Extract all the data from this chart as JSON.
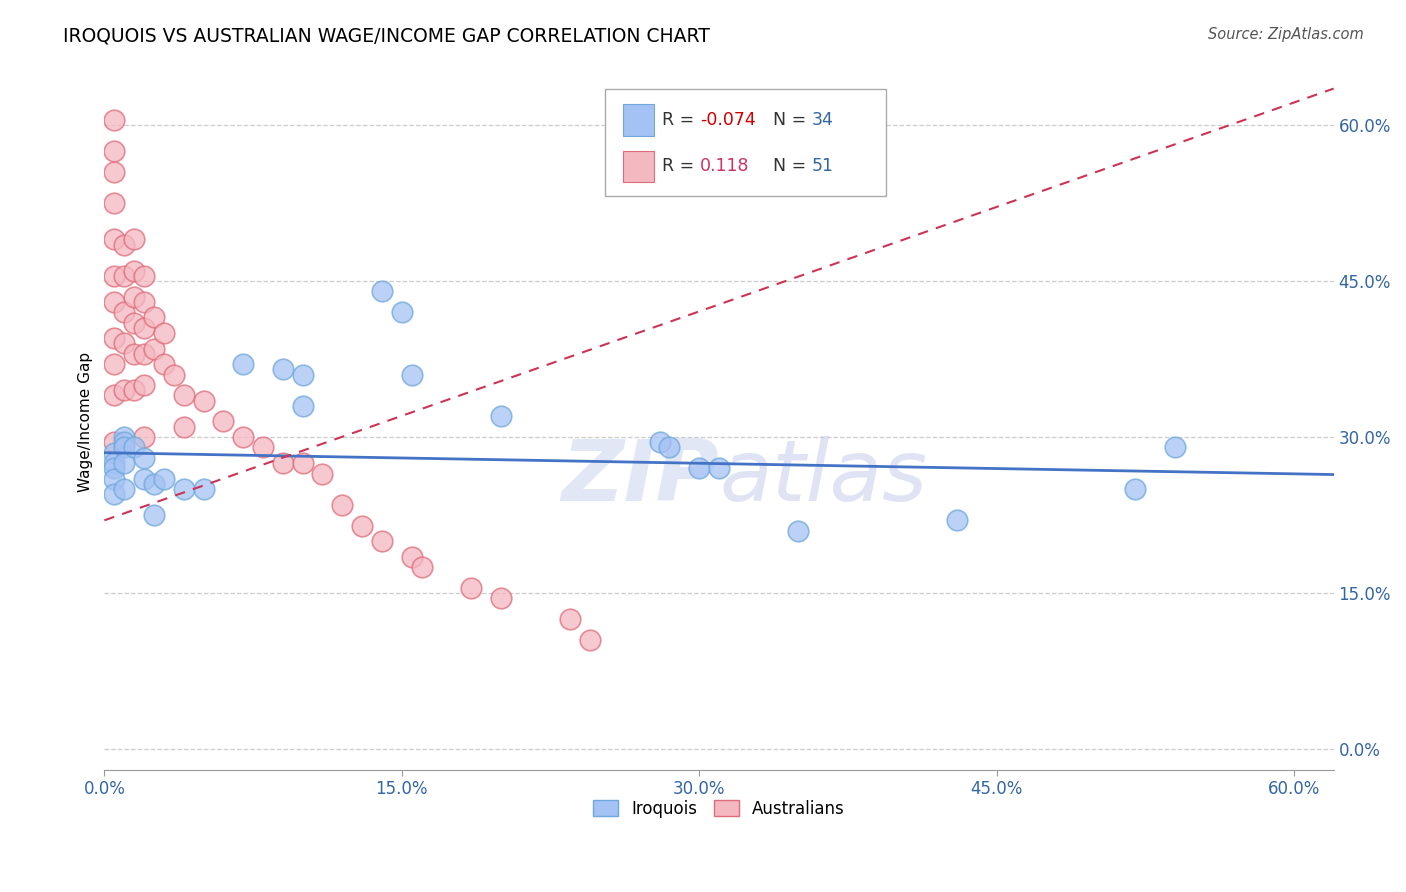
{
  "title": "IROQUOIS VS AUSTRALIAN WAGE/INCOME GAP CORRELATION CHART",
  "source": "Source: ZipAtlas.com",
  "ylabel": "Wage/Income Gap",
  "xlim": [
    0.0,
    0.62
  ],
  "ylim": [
    -0.02,
    0.65
  ],
  "x_ticks": [
    0.0,
    0.15,
    0.3,
    0.45,
    0.6
  ],
  "x_tick_labels": [
    "0.0%",
    "15.0%",
    "30.0%",
    "45.0%",
    "60.0%"
  ],
  "y_ticks": [
    0.0,
    0.15,
    0.3,
    0.45,
    0.6
  ],
  "y_tick_labels": [
    "0.0%",
    "15.0%",
    "30.0%",
    "45.0%",
    "60.0%"
  ],
  "legend_iroquois_R": "-0.074",
  "legend_iroquois_N": "34",
  "legend_australians_R": "0.118",
  "legend_australians_N": "51",
  "iroquois_color": "#a4c2f4",
  "australians_color": "#f4b8c1",
  "iroquois_edge_color": "#6fa8dc",
  "australians_edge_color": "#e06c7a",
  "iroquois_line_color": "#4472c4",
  "australians_line_color": "#cc3355",
  "R_neg_color": "#cc0000",
  "R_pos_color": "#cc3366",
  "N_color": "#3465a4",
  "iroquois_x": [
    0.005,
    0.005,
    0.005,
    0.005,
    0.005,
    0.01,
    0.01,
    0.01,
    0.01,
    0.01,
    0.015,
    0.02,
    0.02,
    0.025,
    0.025,
    0.03,
    0.04,
    0.05,
    0.07,
    0.09,
    0.1,
    0.1,
    0.14,
    0.15,
    0.155,
    0.2,
    0.28,
    0.285,
    0.3,
    0.31,
    0.35,
    0.43,
    0.52,
    0.54
  ],
  "iroquois_y": [
    0.285,
    0.275,
    0.27,
    0.26,
    0.245,
    0.3,
    0.295,
    0.29,
    0.275,
    0.25,
    0.29,
    0.28,
    0.26,
    0.255,
    0.225,
    0.26,
    0.25,
    0.25,
    0.37,
    0.365,
    0.36,
    0.33,
    0.44,
    0.42,
    0.36,
    0.32,
    0.295,
    0.29,
    0.27,
    0.27,
    0.21,
    0.22,
    0.25,
    0.29
  ],
  "australians_x": [
    0.005,
    0.005,
    0.005,
    0.005,
    0.005,
    0.005,
    0.005,
    0.005,
    0.005,
    0.005,
    0.005,
    0.01,
    0.01,
    0.01,
    0.01,
    0.01,
    0.015,
    0.015,
    0.015,
    0.015,
    0.015,
    0.015,
    0.02,
    0.02,
    0.02,
    0.02,
    0.02,
    0.02,
    0.025,
    0.025,
    0.03,
    0.03,
    0.035,
    0.04,
    0.04,
    0.05,
    0.06,
    0.07,
    0.08,
    0.09,
    0.1,
    0.11,
    0.12,
    0.13,
    0.14,
    0.155,
    0.16,
    0.185,
    0.2,
    0.235,
    0.245
  ],
  "australians_y": [
    0.605,
    0.575,
    0.555,
    0.525,
    0.49,
    0.455,
    0.43,
    0.395,
    0.37,
    0.34,
    0.295,
    0.485,
    0.455,
    0.42,
    0.39,
    0.345,
    0.49,
    0.46,
    0.435,
    0.41,
    0.38,
    0.345,
    0.455,
    0.43,
    0.405,
    0.38,
    0.35,
    0.3,
    0.415,
    0.385,
    0.4,
    0.37,
    0.36,
    0.34,
    0.31,
    0.335,
    0.315,
    0.3,
    0.29,
    0.275,
    0.275,
    0.265,
    0.235,
    0.215,
    0.2,
    0.185,
    0.175,
    0.155,
    0.145,
    0.125,
    0.105
  ],
  "blue_trend_x0": 0.0,
  "blue_trend_y0": 0.285,
  "blue_trend_x1": 0.62,
  "blue_trend_y1": 0.264,
  "pink_trend_x0": 0.0,
  "pink_trend_y0": 0.22,
  "pink_trend_x1": 0.62,
  "pink_trend_y1": 0.635
}
